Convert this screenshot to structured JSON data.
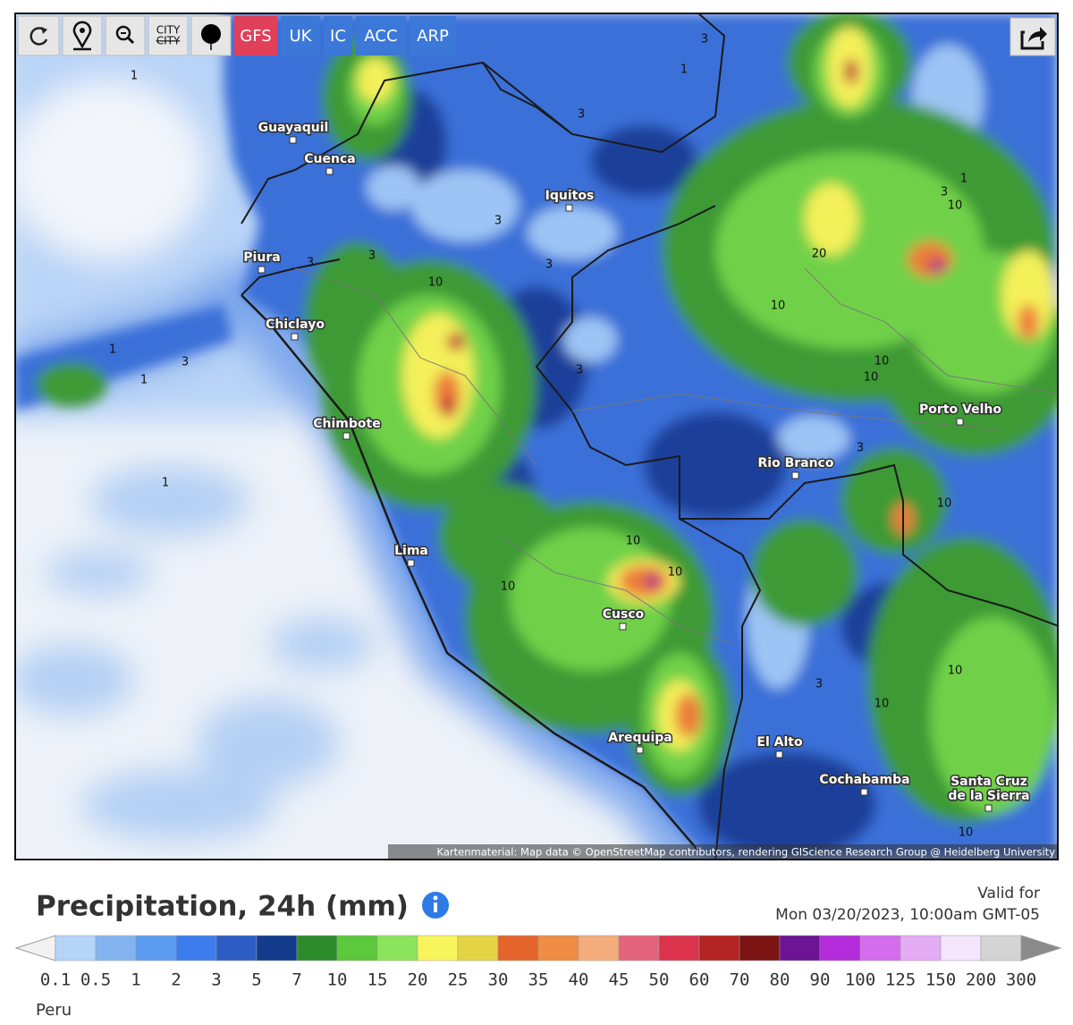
{
  "toolbar": {
    "city_label": "CITY",
    "city_label_struck": "CITY",
    "models": [
      "GFS",
      "UK",
      "IC",
      "ACC",
      "ARP"
    ]
  },
  "map": {
    "cities": [
      [
        "Guayaquil"
      ],
      [
        "Cuenca"
      ],
      [
        "Iquitos"
      ],
      [
        "Piura"
      ],
      [
        "Chiclayo"
      ],
      [
        "Chimbote"
      ],
      [
        "Lima"
      ],
      [
        "Cusco"
      ],
      [
        "Arequipa"
      ],
      [
        "Porto Velho"
      ],
      [
        "Rio Branco"
      ],
      [
        "El Alto"
      ],
      [
        "Cochabamba"
      ],
      [
        "Santa Cruz",
        "de la Sierra"
      ]
    ],
    "contour_labels": [
      "1",
      "3",
      "3",
      "3",
      "3",
      "3",
      "10",
      "20",
      "10",
      "10",
      "10",
      "10",
      "3",
      "1",
      "1",
      "3",
      "1",
      "1",
      "3",
      "3",
      "10",
      "10",
      "10",
      "10",
      "10",
      "10",
      "3",
      "10",
      "3",
      "1"
    ],
    "attribution": "Kartenmaterial: Map data © OpenStreetMap contributors, rendering GIScience Research Group @ Heidelberg University"
  },
  "footer": {
    "title": "Precipitation, 24h (mm)",
    "valid_label": "Valid for",
    "valid_time": "Mon 03/20/2023, 10:00am GMT-05",
    "location": "Peru"
  },
  "legend": {
    "labels": [
      "0.1",
      "0.5",
      "1",
      "2",
      "3",
      "5",
      "7",
      "10",
      "15",
      "20",
      "25",
      "30",
      "35",
      "40",
      "45",
      "50",
      "60",
      "70",
      "80",
      "90",
      "100",
      "125",
      "150",
      "200",
      "300"
    ],
    "colors": [
      "#b4d4f8",
      "#84b4f0",
      "#5c9cf0",
      "#3c7cec",
      "#2c5cc4",
      "#143c8c",
      "#2c8c2c",
      "#5cc83c",
      "#8ce45c",
      "#f8f45c",
      "#e4d444",
      "#e4642c",
      "#f08c44",
      "#f4ac7c",
      "#e4647c",
      "#dc344c",
      "#b42424",
      "#7c1414",
      "#6c1494",
      "#b42cdc",
      "#d46cec",
      "#e4acf4",
      "#f4e4fc",
      "#d4d4d4"
    ],
    "low_color": "#f2f2f2",
    "high_color": "#8a8a8a"
  }
}
